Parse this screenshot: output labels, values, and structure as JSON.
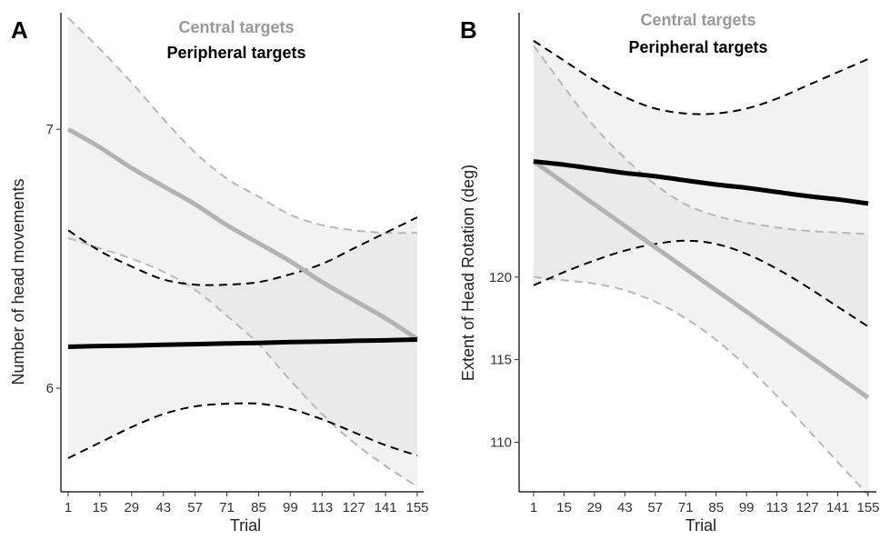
{
  "colors": {
    "central": "#b3b3b3",
    "central_ci": "#b8b8b8",
    "peripheral": "#000000",
    "ribbon": "#dddddd",
    "legend_central": "#999999",
    "legend_peripheral": "#000000"
  },
  "chart_data": [
    {
      "type": "line",
      "panel": "A",
      "legend": [
        "Central targets",
        "Peripheral targets"
      ],
      "legend_placement": "top-center",
      "xlabel": "Trial",
      "ylabel": "Number of head movements",
      "xlim": [
        1,
        155
      ],
      "ylim": [
        5.6,
        7.45
      ],
      "x_ticks": [
        1,
        15,
        29,
        43,
        57,
        71,
        85,
        99,
        113,
        127,
        141,
        155
      ],
      "y_ticks": [
        6,
        7
      ],
      "grid": false,
      "x": [
        1,
        15,
        29,
        43,
        57,
        71,
        85,
        99,
        113,
        127,
        141,
        155
      ],
      "series": [
        {
          "name": "Central targets",
          "values": [
            7.0,
            6.93,
            6.85,
            6.78,
            6.71,
            6.63,
            6.56,
            6.49,
            6.41,
            6.34,
            6.27,
            6.19
          ],
          "lower": [
            6.58,
            6.54,
            6.5,
            6.45,
            6.38,
            6.28,
            6.17,
            6.03,
            5.9,
            5.79,
            5.7,
            5.62
          ],
          "upper": [
            7.43,
            7.31,
            7.18,
            7.04,
            6.91,
            6.81,
            6.74,
            6.67,
            6.63,
            6.61,
            6.6,
            6.6
          ]
        },
        {
          "name": "Peripheral targets",
          "values": [
            6.16,
            6.163,
            6.165,
            6.168,
            6.17,
            6.173,
            6.175,
            6.178,
            6.18,
            6.183,
            6.185,
            6.188
          ],
          "lower": [
            5.73,
            5.79,
            5.85,
            5.9,
            5.93,
            5.94,
            5.94,
            5.92,
            5.88,
            5.83,
            5.78,
            5.74
          ],
          "upper": [
            6.61,
            6.53,
            6.47,
            6.42,
            6.4,
            6.4,
            6.41,
            6.44,
            6.48,
            6.54,
            6.6,
            6.66
          ]
        }
      ]
    },
    {
      "type": "line",
      "panel": "B",
      "legend": [
        "Central targets",
        "Peripheral targets"
      ],
      "legend_placement": "top-center",
      "xlabel": "Trial",
      "ylabel": "Extent of Head Rotation (deg)",
      "xlim": [
        1,
        155
      ],
      "ylim": [
        107,
        136
      ],
      "x_ticks": [
        1,
        15,
        29,
        43,
        57,
        71,
        85,
        99,
        113,
        127,
        141,
        155
      ],
      "y_ticks": [
        110,
        115,
        120
      ],
      "grid": false,
      "x": [
        1,
        15,
        29,
        43,
        57,
        71,
        85,
        99,
        113,
        127,
        141,
        155
      ],
      "series": [
        {
          "name": "Central targets",
          "values": [
            127.0,
            125.7,
            124.4,
            123.1,
            121.8,
            120.5,
            119.2,
            117.9,
            116.6,
            115.3,
            114.0,
            112.7
          ],
          "lower": [
            120.0,
            119.8,
            119.6,
            119.2,
            118.5,
            117.5,
            116.2,
            114.6,
            112.8,
            110.8,
            108.8,
            106.8
          ],
          "upper": [
            134.0,
            131.5,
            129.1,
            127.2,
            125.6,
            124.4,
            123.7,
            123.3,
            123.0,
            122.8,
            122.7,
            122.6
          ]
        },
        {
          "name": "Peripheral targets",
          "values": [
            127.0,
            126.8,
            126.55,
            126.3,
            126.1,
            125.85,
            125.6,
            125.4,
            125.15,
            124.9,
            124.7,
            124.45
          ],
          "lower": [
            119.5,
            120.3,
            121.0,
            121.6,
            122.0,
            122.2,
            122.0,
            121.4,
            120.5,
            119.4,
            118.2,
            117.0
          ],
          "upper": [
            134.3,
            133.1,
            131.9,
            130.9,
            130.2,
            129.9,
            129.9,
            130.2,
            130.8,
            131.6,
            132.4,
            133.2
          ]
        }
      ]
    }
  ]
}
